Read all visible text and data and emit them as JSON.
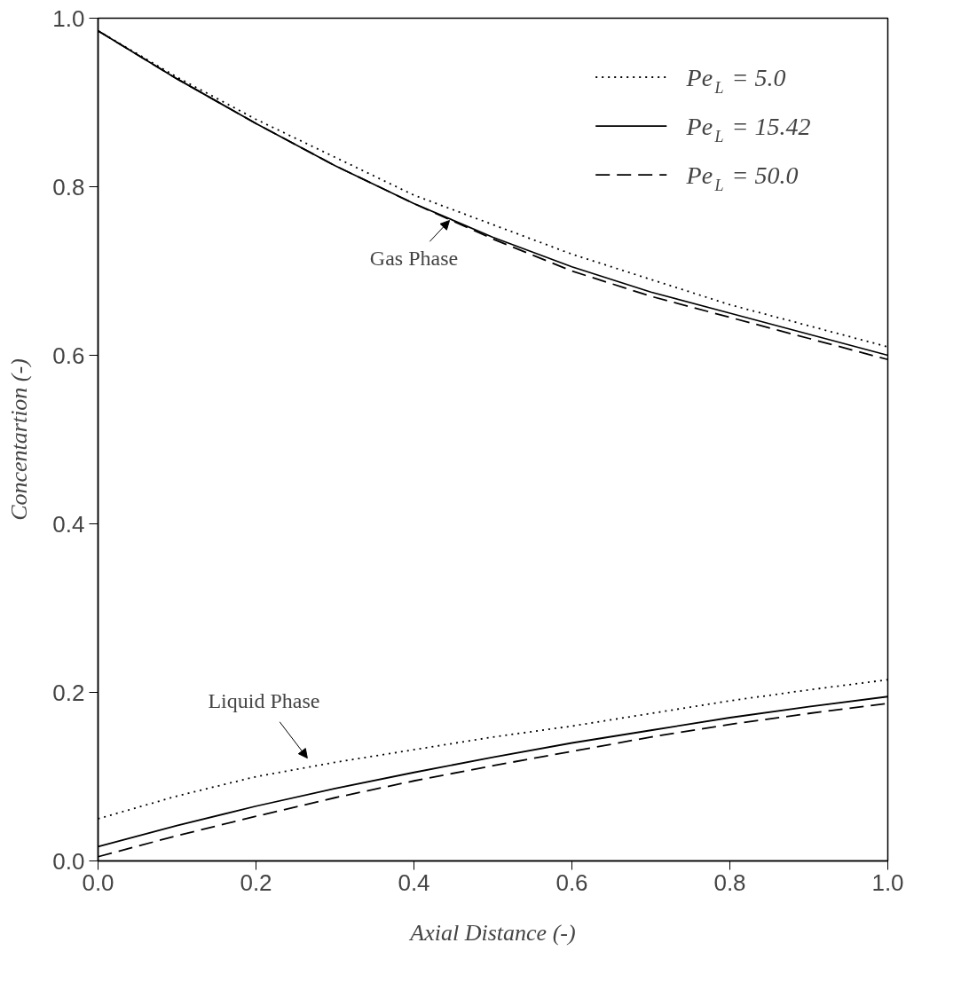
{
  "chart_data": {
    "type": "line",
    "xlabel": "Axial Distance (-)",
    "ylabel": "Concentartion (-)",
    "x": [
      0.0,
      0.1,
      0.2,
      0.3,
      0.4,
      0.5,
      0.6,
      0.7,
      0.8,
      0.9,
      1.0
    ],
    "series": [
      {
        "name": "Pe$_{L}$ = 5.0",
        "color": "#000000",
        "line_style": "dotted",
        "values": [
          0.985,
          0.93,
          0.88,
          0.835,
          0.79,
          0.755,
          0.72,
          0.69,
          0.66,
          0.635,
          0.61
        ]
      },
      {
        "name": "Pe$_{L}$ = 15.42",
        "color": "#000000",
        "line_style": "solid",
        "values": [
          0.985,
          0.928,
          0.875,
          0.825,
          0.78,
          0.74,
          0.705,
          0.675,
          0.65,
          0.625,
          0.6
        ]
      },
      {
        "name": "Pe$_{L}$ = 50.0",
        "color": "#000000",
        "line_style": "dashed",
        "values": [
          0.985,
          0.928,
          0.875,
          0.825,
          0.78,
          0.738,
          0.7,
          0.67,
          0.645,
          0.62,
          0.595
        ]
      },
      {
        "color": "#000000",
        "line_style": "dotted",
        "values": [
          0.05,
          0.077,
          0.1,
          0.117,
          0.132,
          0.147,
          0.16,
          0.175,
          0.19,
          0.203,
          0.215
        ]
      },
      {
        "color": "#000000",
        "line_style": "solid",
        "values": [
          0.017,
          0.042,
          0.065,
          0.086,
          0.105,
          0.123,
          0.14,
          0.155,
          0.17,
          0.183,
          0.195
        ]
      },
      {
        "color": "#000000",
        "line_style": "dashed",
        "values": [
          0.005,
          0.03,
          0.053,
          0.075,
          0.095,
          0.113,
          0.13,
          0.147,
          0.162,
          0.175,
          0.187
        ]
      }
    ],
    "annotations": [
      {
        "text": "Gas Phase",
        "x": 0.45,
        "y": 0.77
      },
      {
        "text": "Liquid Phase",
        "x": 0.27,
        "y": 0.11
      }
    ],
    "xlim": [
      0.0,
      1.0
    ],
    "ylim": [
      0.0,
      1.0
    ],
    "xticks": [
      {
        "value": 0.0,
        "label": "0.0"
      },
      0.2,
      0.4,
      0.6,
      0.8,
      {
        "value": 1.0,
        "label": "1.0"
      }
    ],
    "yticks": [
      {
        "value": 0.0,
        "label": "0.0"
      },
      0.2,
      0.4,
      0.6,
      0.8,
      {
        "value": 1.0,
        "label": "1.0"
      }
    ],
    "legend": "top right",
    "grid": false
  }
}
